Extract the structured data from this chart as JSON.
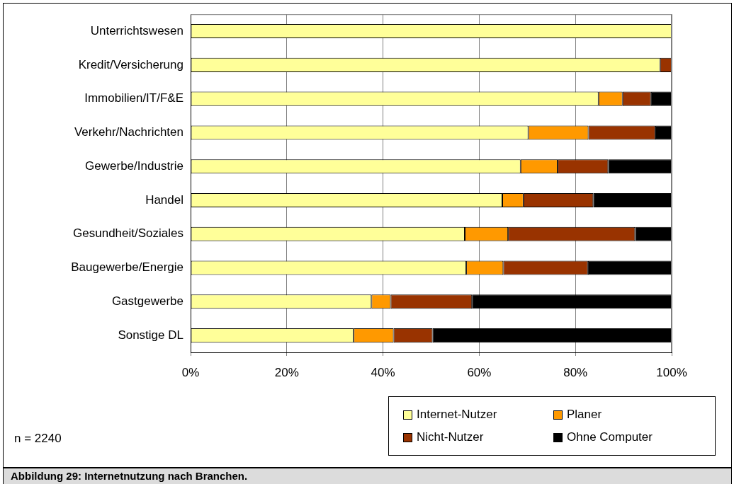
{
  "chart_data": {
    "type": "bar",
    "orientation": "horizontal",
    "stacked": true,
    "title": "Abbildung 29: Internetnutzung nach Branchen.",
    "categories": [
      "Unterrichtswesen",
      "Kredit/Versicherung",
      "Immobilien/IT/F&E",
      "Verkehr/Nachrichten",
      "Gewerbe/Industrie",
      "Handel",
      "Gesundheit/Soziales",
      "Baugewerbe/Energie",
      "Gastgewerbe",
      "Sonstige DL"
    ],
    "series": [
      {
        "name": "Internet-Nutzer",
        "color": "#ffff99",
        "values": [
          100,
          97.6,
          84.8,
          70.2,
          68.6,
          64.8,
          57.0,
          57.3,
          37.6,
          33.9
        ]
      },
      {
        "name": "Planer",
        "color": "#ff9900",
        "values": [
          0,
          0,
          5.0,
          12.5,
          7.7,
          4.4,
          9.0,
          7.7,
          4.0,
          8.3
        ]
      },
      {
        "name": "Nicht-Nutzer",
        "color": "#993300",
        "values": [
          0,
          2.4,
          5.9,
          13.9,
          10.5,
          14.5,
          26.4,
          17.6,
          16.9,
          8.1
        ]
      },
      {
        "name": "Ohne Computer",
        "color": "#000000",
        "values": [
          0,
          0,
          4.3,
          3.4,
          13.2,
          16.3,
          7.6,
          17.4,
          41.5,
          49.7
        ]
      }
    ],
    "xlim": [
      0,
      100
    ],
    "xticks": [
      {
        "value": 0,
        "label": "0%"
      },
      {
        "value": 20,
        "label": "20%"
      },
      {
        "value": 40,
        "label": "40%"
      },
      {
        "value": 60,
        "label": "60%"
      },
      {
        "value": 80,
        "label": "80%"
      },
      {
        "value": 100,
        "label": "100%"
      }
    ],
    "grid": "x",
    "legend": "bottom right",
    "annotations": [
      "n = 2240"
    ]
  }
}
